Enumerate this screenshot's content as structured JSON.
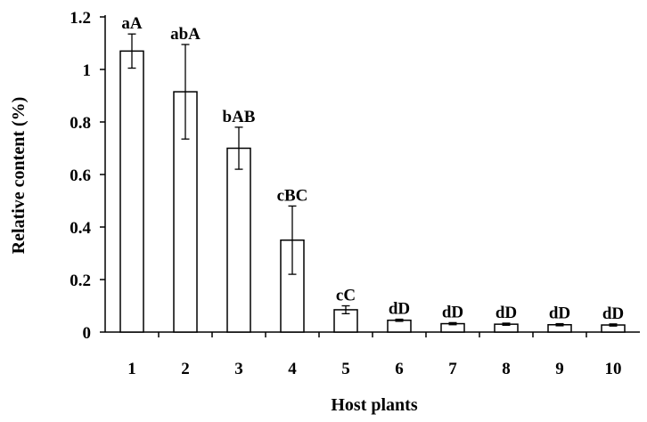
{
  "chart_data": {
    "type": "bar",
    "title": "",
    "xlabel": "Host plants",
    "ylabel": "Relative content (%)",
    "categories": [
      "1",
      "2",
      "3",
      "4",
      "5",
      "6",
      "7",
      "8",
      "9",
      "10"
    ],
    "values": [
      1.07,
      0.915,
      0.7,
      0.35,
      0.085,
      0.045,
      0.032,
      0.03,
      0.028,
      0.027
    ],
    "errors": [
      0.065,
      0.18,
      0.08,
      0.13,
      0.015,
      0.004,
      0.004,
      0.004,
      0.004,
      0.004
    ],
    "significance_labels": [
      "aA",
      "abA",
      "bAB",
      "cBC",
      "cC",
      "dD",
      "dD",
      "dD",
      "dD",
      "dD"
    ],
    "ylim": [
      0,
      1.2
    ],
    "yticks": [
      0,
      0.2,
      0.4,
      0.6,
      0.8,
      1,
      1.2
    ],
    "ytick_labels": [
      "0",
      "0.2",
      "0.4",
      "0.6",
      "0.8",
      "1",
      "1.2"
    ],
    "grid": false,
    "bar_fill": "#ffffff",
    "bar_stroke": "#000000"
  }
}
